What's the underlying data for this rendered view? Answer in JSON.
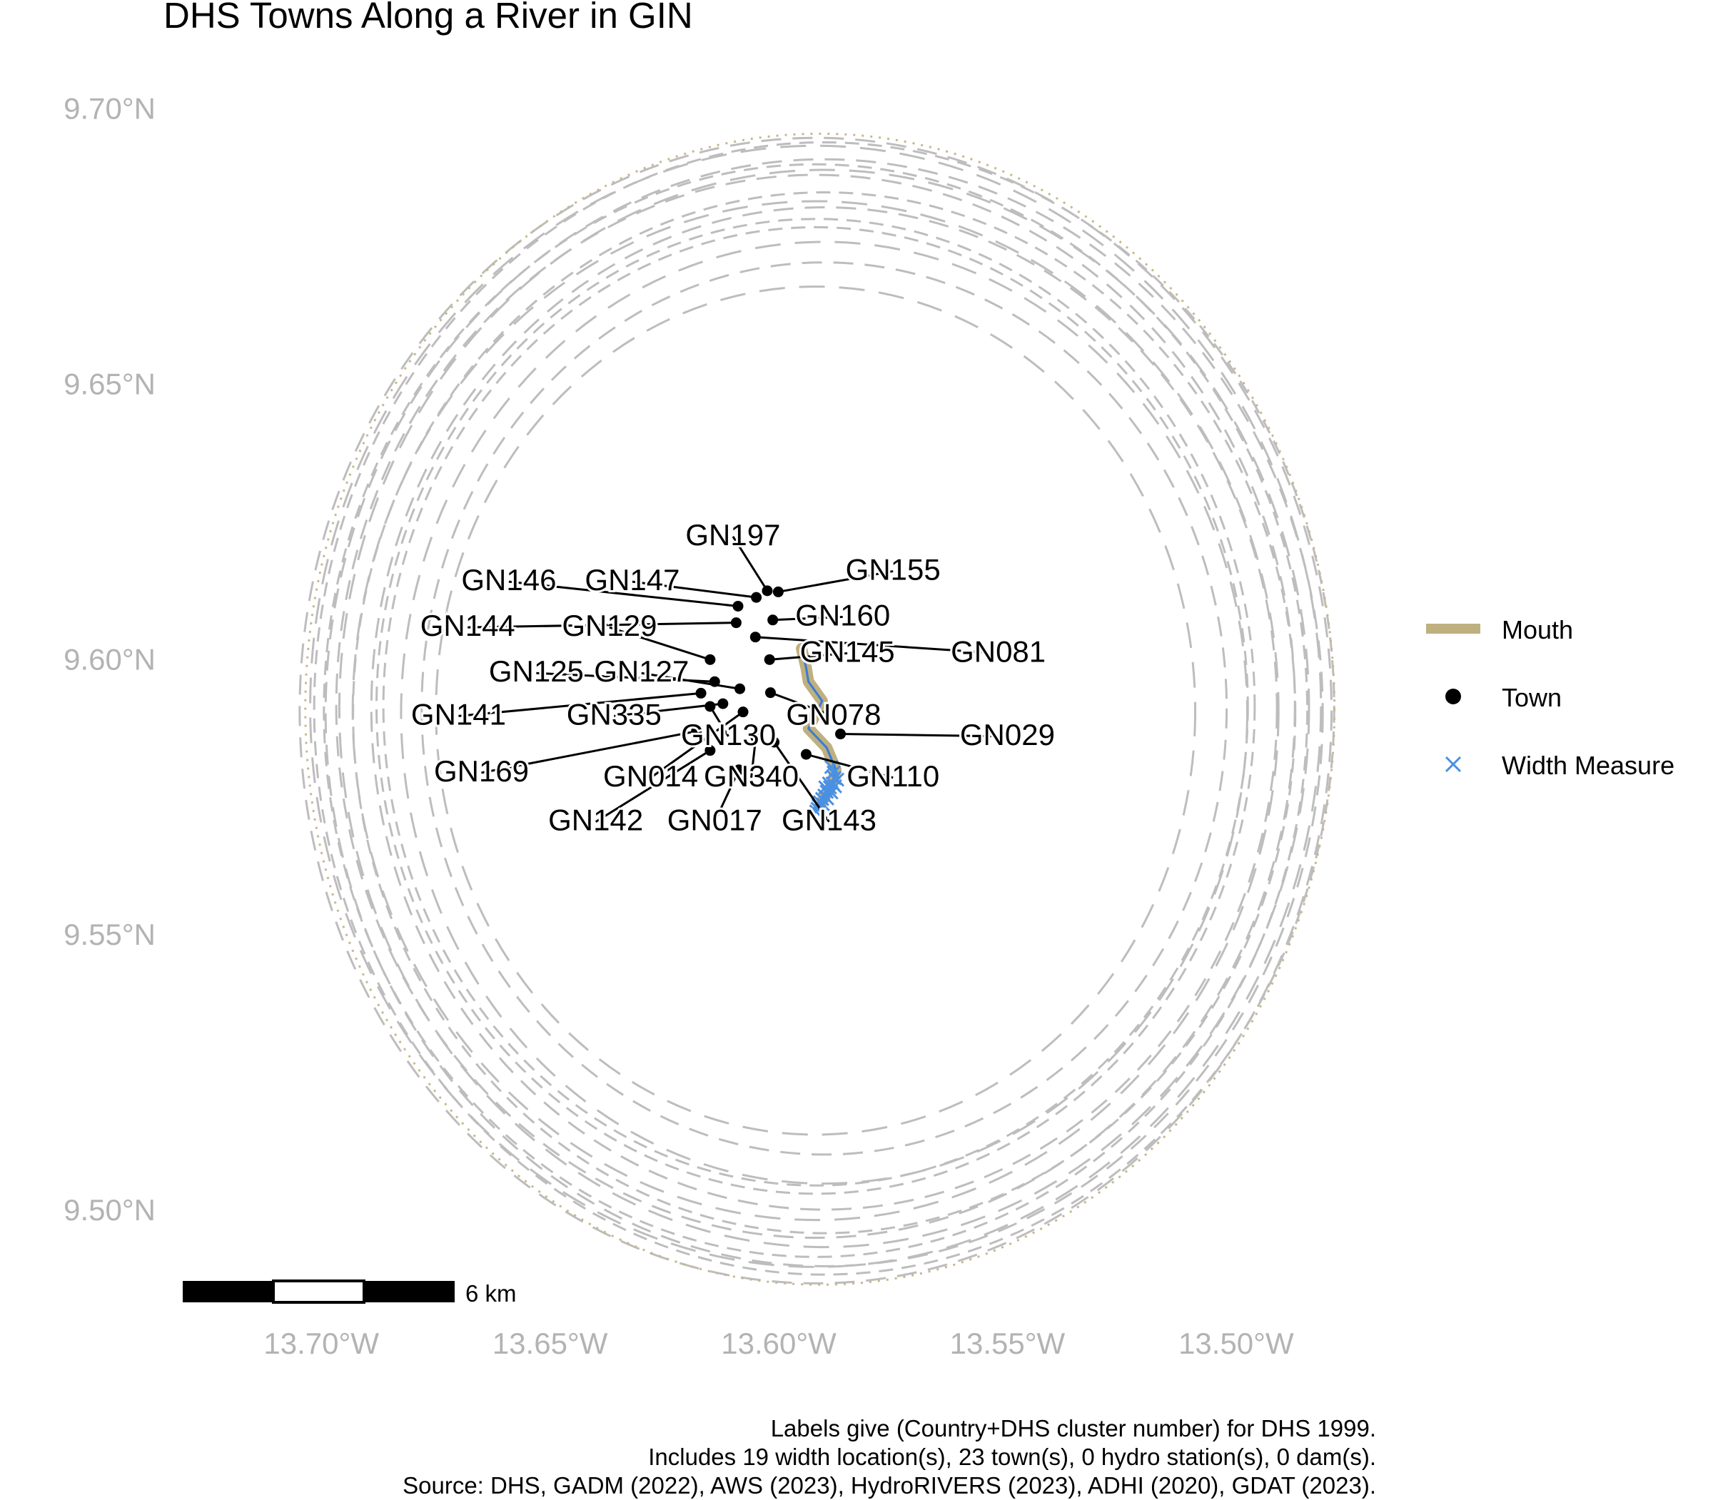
{
  "title": "DHS Towns Along a River in GIN",
  "axes": {
    "y_ticks": [
      {
        "value": 9.7,
        "label": "9.70°N"
      },
      {
        "value": 9.65,
        "label": "9.65°N"
      },
      {
        "value": 9.6,
        "label": "9.60°N"
      },
      {
        "value": 9.55,
        "label": "9.55°N"
      },
      {
        "value": 9.5,
        "label": "9.50°N"
      }
    ],
    "x_ticks": [
      {
        "value": -13.7,
        "label": "13.70°W"
      },
      {
        "value": -13.65,
        "label": "13.65°W"
      },
      {
        "value": -13.6,
        "label": "13.60°W"
      },
      {
        "value": -13.55,
        "label": "13.55°W"
      },
      {
        "value": -13.5,
        "label": "13.50°W"
      }
    ],
    "xlim": [
      -13.725,
      -13.48
    ],
    "ylim": [
      9.482,
      9.712
    ],
    "tick_color": "#b3b3b3"
  },
  "legend": {
    "position": "right",
    "items": [
      {
        "key": "mouth",
        "label": "Mouth",
        "symbol": "line",
        "color": "#bfb07f"
      },
      {
        "key": "town",
        "label": "Town",
        "symbol": "dot",
        "color": "#000000"
      },
      {
        "key": "width",
        "label": "Width Measure",
        "symbol": "x",
        "color": "#4a90e2"
      }
    ]
  },
  "scale_bar": {
    "label": "6 km"
  },
  "caption": {
    "line1": "Labels give (Country+DHS cluster number) for DHS 1999.",
    "line2": "Includes 19 width location(s), 23 town(s), 0 hydro station(s), 0 dam(s).",
    "line3": "Source: DHS, GADM (2022), AWS (2023), HydroRIVERS (2023), ADHI (2020), GDAT (2023)."
  },
  "colors": {
    "buffer_ring": "#bdbdbd",
    "outer_dotted_ring": "#c8b98a",
    "river": "#bfb07f",
    "river_line": "#3a7bd5",
    "width_marker": "#4a90e2",
    "town": "#000000"
  },
  "map_data": {
    "center": {
      "lon": -13.591,
      "lat": 9.591
    },
    "towns": [
      {
        "id": "GN197",
        "lon": -13.6025,
        "lat": 9.6125,
        "label_lon": -13.61,
        "label_lat": 9.6208
      },
      {
        "id": "GN155",
        "lon": -13.6001,
        "lat": 9.6123,
        "label_lon": -13.575,
        "label_lat": 9.6145
      },
      {
        "id": "GN146",
        "lon": -13.6089,
        "lat": 9.6097,
        "label_lon": -13.659,
        "label_lat": 9.6126
      },
      {
        "id": "GN147",
        "lon": -13.6049,
        "lat": 9.6113,
        "label_lon": -13.632,
        "label_lat": 9.6126
      },
      {
        "id": "GN160",
        "lon": -13.6013,
        "lat": 9.6072,
        "label_lon": -13.586,
        "label_lat": 9.6062
      },
      {
        "id": "GN144",
        "lon": -13.6093,
        "lat": 9.6067,
        "label_lon": -13.668,
        "label_lat": 9.6043
      },
      {
        "id": "GN129",
        "lon": -13.615,
        "lat": 9.6,
        "label_lon": -13.637,
        "label_lat": 9.6043
      },
      {
        "id": "GN081",
        "lon": -13.6051,
        "lat": 9.6041,
        "label_lon": -13.552,
        "label_lat": 9.5996
      },
      {
        "id": "GN145",
        "lon": -13.602,
        "lat": 9.6,
        "label_lon": -13.585,
        "label_lat": 9.5996
      },
      {
        "id": "GN125",
        "lon": -13.614,
        "lat": 9.596,
        "label_lon": -13.653,
        "label_lat": 9.596
      },
      {
        "id": "GN127",
        "lon": -13.6085,
        "lat": 9.5947,
        "label_lon": -13.63,
        "label_lat": 9.596
      },
      {
        "id": "GN078",
        "lon": -13.6018,
        "lat": 9.594,
        "label_lon": -13.588,
        "label_lat": 9.5882
      },
      {
        "id": "GN141",
        "lon": -13.617,
        "lat": 9.5939,
        "label_lon": -13.67,
        "label_lat": 9.5882
      },
      {
        "id": "GN335",
        "lon": -13.6122,
        "lat": 9.592,
        "label_lon": -13.636,
        "label_lat": 9.5882
      },
      {
        "id": "GN029",
        "lon": -13.5865,
        "lat": 9.5865,
        "label_lon": -13.55,
        "label_lat": 9.5845
      },
      {
        "id": "GN130",
        "lon": -13.615,
        "lat": 9.5915,
        "label_lon": -13.611,
        "label_lat": 9.5845
      },
      {
        "id": "GN169",
        "lon": -13.618,
        "lat": 9.587,
        "label_lon": -13.665,
        "label_lat": 9.5779
      },
      {
        "id": "GN014",
        "lon": -13.6078,
        "lat": 9.5905,
        "label_lon": -13.628,
        "label_lat": 9.577
      },
      {
        "id": "GN340",
        "lon": -13.605,
        "lat": 9.5859,
        "label_lon": -13.606,
        "label_lat": 9.577
      },
      {
        "id": "GN110",
        "lon": -13.594,
        "lat": 9.5828,
        "label_lon": -13.575,
        "label_lat": 9.577
      },
      {
        "id": "GN142",
        "lon": -13.615,
        "lat": 9.5835,
        "label_lon": -13.64,
        "label_lat": 9.569
      },
      {
        "id": "GN017",
        "lon": -13.6087,
        "lat": 9.58,
        "label_lon": -13.614,
        "label_lat": 9.569
      },
      {
        "id": "GN143",
        "lon": -13.601,
        "lat": 9.585,
        "label_lon": -13.589,
        "label_lat": 9.569
      }
    ],
    "river_path": [
      [
        -13.595,
        9.602
      ],
      [
        -13.594,
        9.5985
      ],
      [
        -13.5935,
        9.596
      ],
      [
        -13.5905,
        9.5925
      ],
      [
        -13.5935,
        9.5875
      ],
      [
        -13.5895,
        9.584
      ],
      [
        -13.5875,
        9.58
      ],
      [
        -13.5885,
        9.577
      ],
      [
        -13.591,
        9.5735
      ]
    ],
    "width_measures": [
      [
        -13.5885,
        9.5805
      ],
      [
        -13.588,
        9.5795
      ],
      [
        -13.5878,
        9.5785
      ],
      [
        -13.5882,
        9.5775
      ],
      [
        -13.5888,
        9.5768
      ],
      [
        -13.5895,
        9.576
      ],
      [
        -13.59,
        9.5753
      ],
      [
        -13.5905,
        9.5747
      ],
      [
        -13.591,
        9.5741
      ],
      [
        -13.5913,
        9.5735
      ],
      [
        -13.5915,
        9.5729
      ],
      [
        -13.5918,
        9.5724
      ],
      [
        -13.5903,
        9.5737
      ],
      [
        -13.5894,
        9.5748
      ],
      [
        -13.5885,
        9.5759
      ],
      [
        -13.5877,
        9.577
      ],
      [
        -13.5872,
        9.5782
      ],
      [
        -13.589,
        9.5775
      ],
      [
        -13.5898,
        9.5768
      ]
    ],
    "buffer_rings": [
      {
        "rx": 0.096,
        "ry": 0.0885
      },
      {
        "rx": 0.099,
        "ry": 0.091
      },
      {
        "rx": 0.1012,
        "ry": 0.0925
      },
      {
        "rx": 0.103,
        "ry": 0.0945
      },
      {
        "rx": 0.1048,
        "ry": 0.0965
      },
      {
        "rx": 0.106,
        "ry": 0.0978
      },
      {
        "rx": 0.1075,
        "ry": 0.0992
      },
      {
        "rx": 0.109,
        "ry": 0.1005
      },
      {
        "rx": 0.1105,
        "ry": 0.1018
      },
      {
        "rx": 0.1115,
        "ry": 0.1028
      },
      {
        "rx": 0.1128,
        "ry": 0.104
      },
      {
        "rx": 0.0925,
        "ry": 0.0855
      },
      {
        "rx": 0.0945,
        "ry": 0.087
      },
      {
        "rx": 0.088,
        "ry": 0.081
      },
      {
        "rx": 0.083,
        "ry": 0.077
      }
    ],
    "outer_ring": {
      "rx": 0.1125,
      "ry": 0.1045
    }
  }
}
